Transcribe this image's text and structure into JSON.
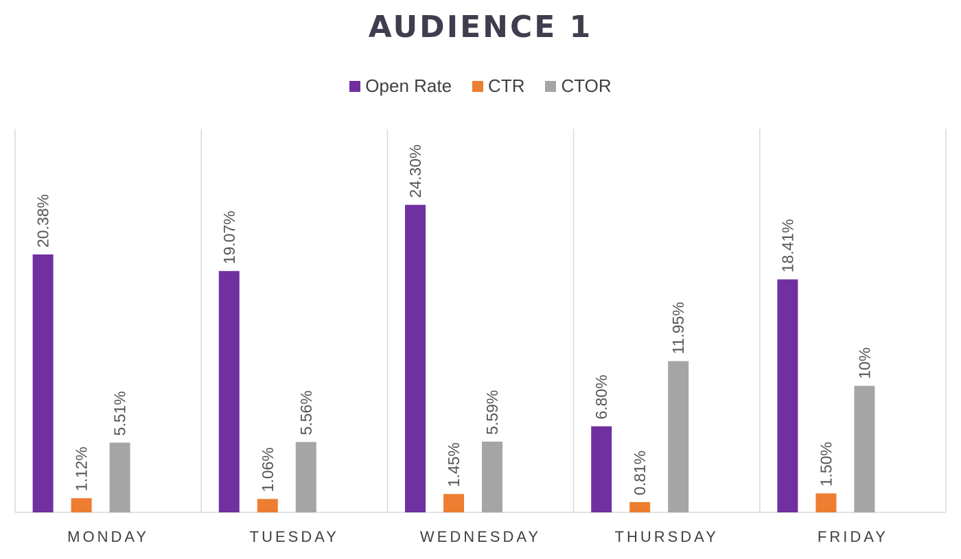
{
  "chart_data": {
    "type": "bar",
    "title": "AUDIENCE 1",
    "categories": [
      "MONDAY",
      "TUESDAY",
      "WEDNESDAY",
      "THURSDAY",
      "FRIDAY"
    ],
    "series": [
      {
        "name": "Open Rate",
        "color": "#7030a0",
        "values": [
          20.38,
          19.07,
          24.3,
          6.8,
          18.41
        ],
        "labels": [
          "20.38%",
          "19.07%",
          "24.30%",
          "6.80%",
          "18.41%"
        ]
      },
      {
        "name": "CTR",
        "color": "#ed7d31",
        "values": [
          1.12,
          1.06,
          1.45,
          0.81,
          1.5
        ],
        "labels": [
          "1.12%",
          "1.06%",
          "1.45%",
          "0.81%",
          "1.50%"
        ]
      },
      {
        "name": "CTOR",
        "color": "#a5a5a5",
        "values": [
          5.51,
          5.56,
          5.59,
          11.95,
          10.0
        ],
        "labels": [
          "5.51%",
          "5.56%",
          "5.59%",
          "11.95%",
          "10%"
        ]
      }
    ],
    "legend_position": "top",
    "grid": "vertical category separators",
    "ylim": [
      0,
      30
    ]
  }
}
